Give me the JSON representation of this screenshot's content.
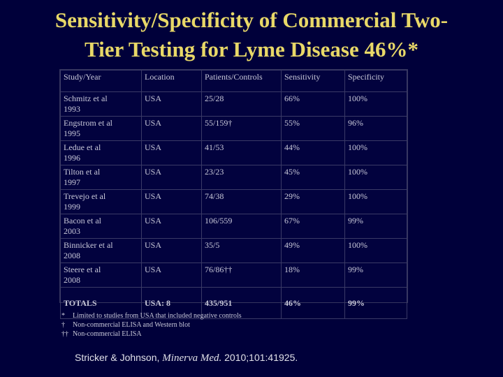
{
  "title": {
    "line1": "Sensitivity/Specificity of Commercial Two-",
    "line2": "Tier Testing for Lyme Disease 46%*"
  },
  "table": {
    "headers": [
      "Study/Year",
      "Location",
      "Patients/Controls",
      "Sensitivity",
      "Specificity"
    ],
    "rows": [
      {
        "study": "Schmitz et al",
        "year": "1993",
        "location": "USA",
        "pc": "25/28",
        "sensitivity": "66%",
        "specificity": "100%"
      },
      {
        "study": "Engstrom et al",
        "year": "1995",
        "location": "USA",
        "pc": "55/159†",
        "sensitivity": "55%",
        "specificity": "96%"
      },
      {
        "study": "Ledue et al",
        "year": "1996",
        "location": "USA",
        "pc": "41/53",
        "sensitivity": "44%",
        "specificity": "100%"
      },
      {
        "study": "Tilton et al",
        "year": "1997",
        "location": "USA",
        "pc": "23/23",
        "sensitivity": "45%",
        "specificity": "100%"
      },
      {
        "study": "Trevejo et al",
        "year": "1999",
        "location": "USA",
        "pc": "74/38",
        "sensitivity": "29%",
        "specificity": "100%"
      },
      {
        "study": "Bacon et al",
        "year": "2003",
        "location": "USA",
        "pc": "106/559",
        "sensitivity": "67%",
        "specificity": "99%"
      },
      {
        "study": "Binnicker et al",
        "year": "2008",
        "location": "USA",
        "pc": "35/5",
        "sensitivity": "49%",
        "specificity": "100%"
      },
      {
        "study": "Steere et al",
        "year": "2008",
        "location": "USA",
        "pc": "76/86††",
        "sensitivity": "18%",
        "specificity": "99%"
      }
    ],
    "totals": {
      "label": "TOTALS",
      "location": "USA: 8",
      "pc": "435/951",
      "sensitivity": "46%",
      "specificity": "99%"
    }
  },
  "footnotes": [
    {
      "mark": "*",
      "text": "Limited to studies from USA that included negative controls"
    },
    {
      "mark": "†",
      "text": "Non-commercial ELISA and Western blot"
    },
    {
      "mark": "††",
      "text": "Non-commercial ELISA"
    }
  ],
  "citation": {
    "authors": "Stricker & Johnson, ",
    "journal": "Minerva Med.",
    "details": " 2010;101:41925."
  }
}
